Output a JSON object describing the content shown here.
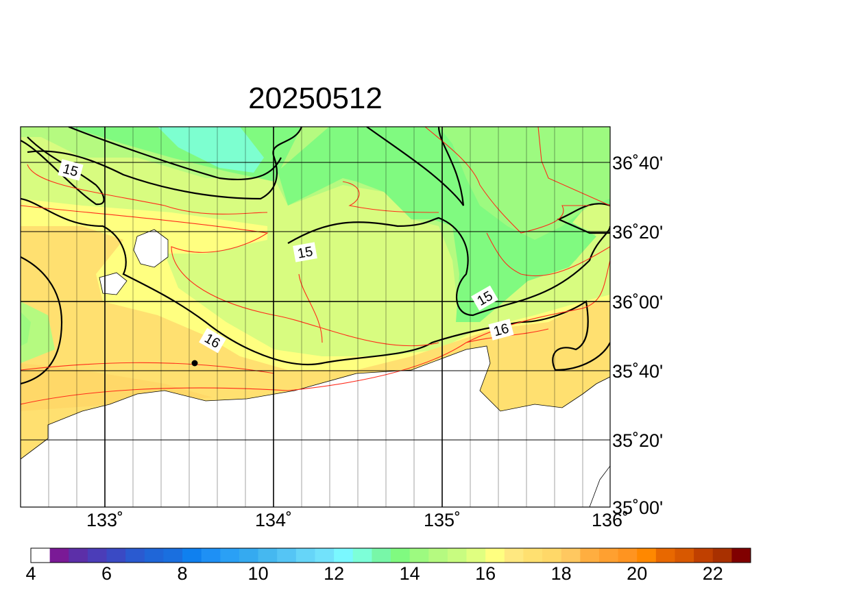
{
  "map": {
    "title": "20250512",
    "lon_labels": [
      "133˚",
      "134˚",
      "135˚",
      "136˚"
    ],
    "lat_labels": [
      "36˚40'",
      "36˚20'",
      "36˚00'",
      "35˚40'",
      "35˚20'",
      "35˚00'"
    ],
    "contour_labels": [
      "15",
      "15",
      "15",
      "16",
      "16"
    ],
    "colorbar": {
      "colors": [
        "#ffffff",
        "#7a1a96",
        "#5c2fa8",
        "#4b3db8",
        "#3a4ac4",
        "#2a5ad0",
        "#1f66d8",
        "#1a6fdf",
        "#0f80ef",
        "#1e90f5",
        "#2aa0f5",
        "#35aaf0",
        "#45b8f0",
        "#55c5f5",
        "#66d5f8",
        "#72e2fb",
        "#7af8ff",
        "#7dffd8",
        "#78f7a8",
        "#80fa80",
        "#9dfa80",
        "#b5fa80",
        "#c8fc80",
        "#e0ff80",
        "#ffff80",
        "#ffe880",
        "#ffe070",
        "#ffd868",
        "#ffc860",
        "#ffae40",
        "#ffa030",
        "#ff9420",
        "#ff8800",
        "#e86800",
        "#d85800",
        "#c04000",
        "#a83000",
        "#800000"
      ],
      "ticks": [
        4,
        6,
        8,
        10,
        12,
        14,
        16,
        18,
        20,
        22
      ]
    }
  }
}
